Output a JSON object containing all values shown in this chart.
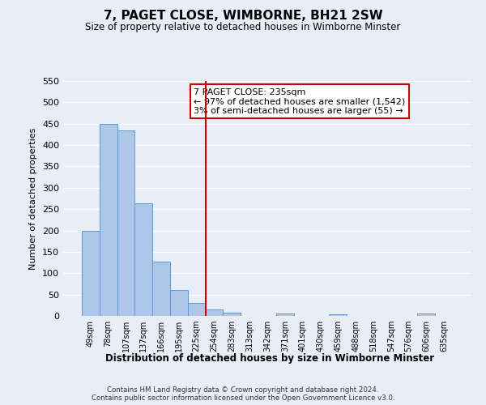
{
  "title": "7, PAGET CLOSE, WIMBORNE, BH21 2SW",
  "subtitle": "Size of property relative to detached houses in Wimborne Minster",
  "xlabel": "Distribution of detached houses by size in Wimborne Minster",
  "ylabel": "Number of detached properties",
  "bar_labels": [
    "49sqm",
    "78sqm",
    "107sqm",
    "137sqm",
    "166sqm",
    "195sqm",
    "225sqm",
    "254sqm",
    "283sqm",
    "313sqm",
    "342sqm",
    "371sqm",
    "401sqm",
    "430sqm",
    "459sqm",
    "488sqm",
    "518sqm",
    "547sqm",
    "576sqm",
    "606sqm",
    "635sqm"
  ],
  "bar_values": [
    200,
    450,
    435,
    263,
    128,
    60,
    30,
    15,
    8,
    0,
    0,
    5,
    0,
    0,
    4,
    0,
    0,
    0,
    0,
    5,
    0
  ],
  "bar_color": "#aec6e8",
  "bar_edgecolor": "#5b9bd5",
  "ylim": [
    0,
    550
  ],
  "yticks": [
    0,
    50,
    100,
    150,
    200,
    250,
    300,
    350,
    400,
    450,
    500,
    550
  ],
  "vline_color": "#cc0000",
  "annotation_title": "7 PAGET CLOSE: 235sqm",
  "annotation_line1": "← 97% of detached houses are smaller (1,542)",
  "annotation_line2": "3% of semi-detached houses are larger (55) →",
  "annotation_box_color": "#cc0000",
  "footer_line1": "Contains HM Land Registry data © Crown copyright and database right 2024.",
  "footer_line2": "Contains public sector information licensed under the Open Government Licence v3.0.",
  "background_color": "#e8eef8",
  "grid_color": "#ffffff"
}
